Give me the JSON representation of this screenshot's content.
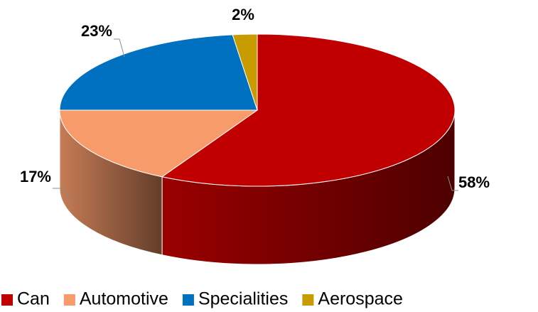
{
  "chart_data": {
    "type": "pie",
    "categories": [
      "Can",
      "Automotive",
      "Specialities",
      "Aerospace"
    ],
    "values": [
      58,
      17,
      23,
      2
    ],
    "value_labels": [
      "58%",
      "17%",
      "23%",
      "2%"
    ],
    "colors": [
      "#c00000",
      "#f79b6a",
      "#0070c0",
      "#c89b00"
    ],
    "legend": "bottom"
  }
}
